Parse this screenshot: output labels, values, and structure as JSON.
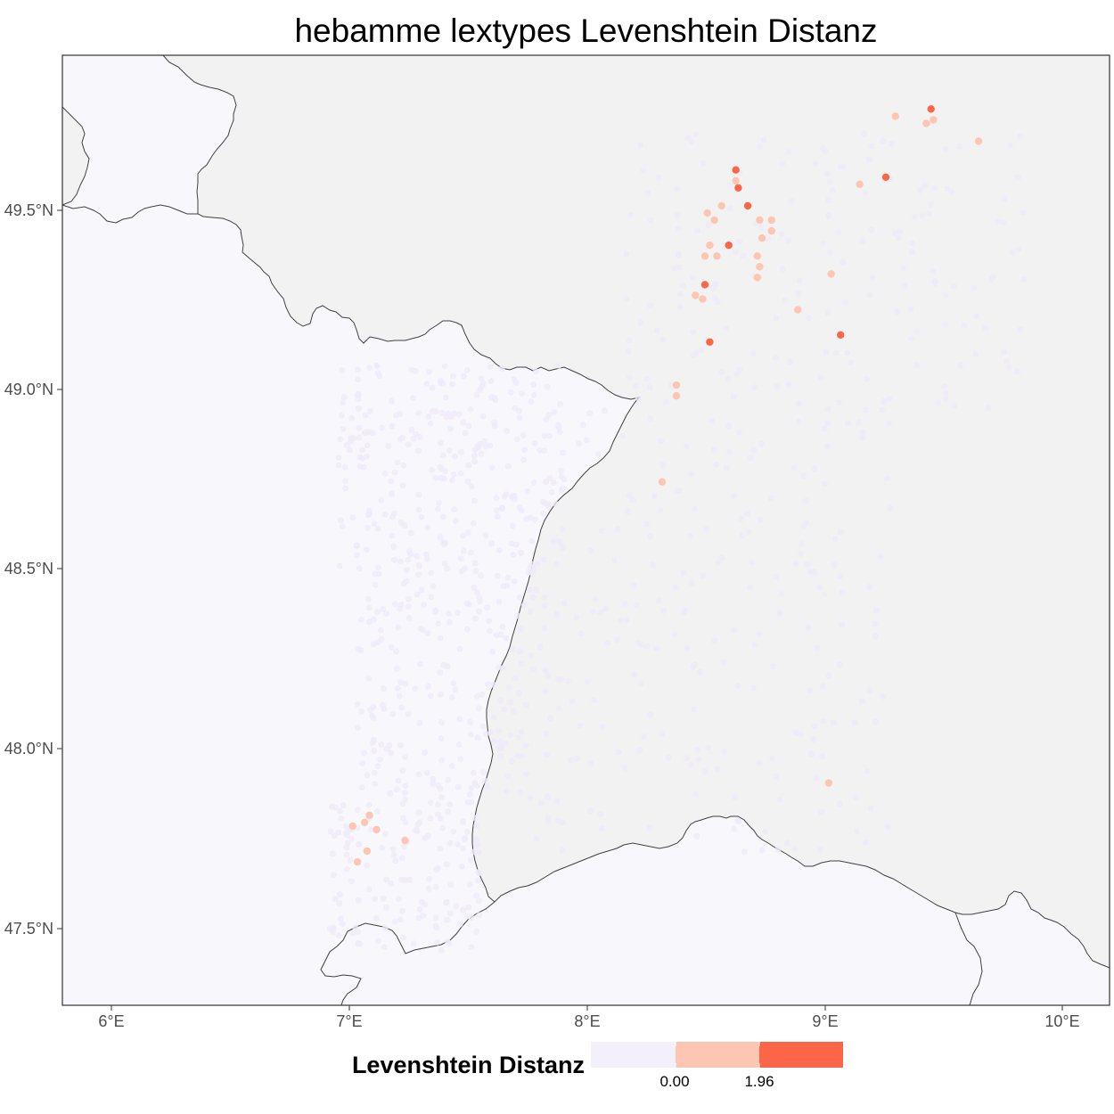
{
  "title": "hebamme lextypes Levenshtein Distanz",
  "axes": {
    "y_ticks": [
      "49.5°N",
      "49.0°N",
      "48.5°N",
      "48.0°N",
      "47.5°N"
    ],
    "x_ticks": [
      "6°E",
      "7°E",
      "8°E",
      "9°E",
      "10°E"
    ]
  },
  "legend": {
    "title": "Levenshtein Distanz",
    "labels": [
      "0.00",
      "1.96"
    ],
    "colors": [
      "#f4f0fb",
      "#fcc6b2",
      "#fc6648"
    ]
  },
  "colors": {
    "panel": "#f8f8fc",
    "neighbor_land": "#f2f2f2",
    "border": "#404040",
    "background_dots": "#efe9f8"
  },
  "chart_data": {
    "type": "scatter",
    "title": "hebamme lextypes Levenshtein Distanz",
    "xlim": [
      5.82,
      10.22
    ],
    "ylim": [
      47.28,
      49.93
    ],
    "x_ticks": [
      6,
      7,
      8,
      9,
      10
    ],
    "y_ticks": [
      47.5,
      48.0,
      48.5,
      49.0,
      49.5
    ],
    "legend_title": "Levenshtein Distanz",
    "legend_position": "bottom",
    "color_levels": {
      "low": "#f4f0fb",
      "mid": "#fcc6b2",
      "high": "#fc6648"
    },
    "points": [
      {
        "lon": 9.47,
        "lat": 49.78,
        "level": "high"
      },
      {
        "lon": 9.32,
        "lat": 49.76,
        "level": "mid"
      },
      {
        "lon": 9.45,
        "lat": 49.74,
        "level": "mid"
      },
      {
        "lon": 9.48,
        "lat": 49.75,
        "level": "mid"
      },
      {
        "lon": 9.67,
        "lat": 49.69,
        "level": "mid"
      },
      {
        "lon": 9.28,
        "lat": 49.59,
        "level": "high"
      },
      {
        "lon": 9.17,
        "lat": 49.57,
        "level": "mid"
      },
      {
        "lon": 8.65,
        "lat": 49.61,
        "level": "high"
      },
      {
        "lon": 8.65,
        "lat": 49.58,
        "level": "mid"
      },
      {
        "lon": 8.66,
        "lat": 49.56,
        "level": "high"
      },
      {
        "lon": 8.7,
        "lat": 49.51,
        "level": "high"
      },
      {
        "lon": 8.59,
        "lat": 49.51,
        "level": "mid"
      },
      {
        "lon": 8.53,
        "lat": 49.49,
        "level": "mid"
      },
      {
        "lon": 8.56,
        "lat": 49.47,
        "level": "mid"
      },
      {
        "lon": 8.75,
        "lat": 49.47,
        "level": "mid"
      },
      {
        "lon": 8.8,
        "lat": 49.47,
        "level": "mid"
      },
      {
        "lon": 8.8,
        "lat": 49.44,
        "level": "mid"
      },
      {
        "lon": 8.76,
        "lat": 49.42,
        "level": "mid"
      },
      {
        "lon": 8.62,
        "lat": 49.4,
        "level": "high"
      },
      {
        "lon": 8.54,
        "lat": 49.4,
        "level": "mid"
      },
      {
        "lon": 8.52,
        "lat": 49.37,
        "level": "mid"
      },
      {
        "lon": 8.57,
        "lat": 49.37,
        "level": "mid"
      },
      {
        "lon": 8.74,
        "lat": 49.37,
        "level": "mid"
      },
      {
        "lon": 8.75,
        "lat": 49.34,
        "level": "mid"
      },
      {
        "lon": 9.05,
        "lat": 49.32,
        "level": "mid"
      },
      {
        "lon": 8.74,
        "lat": 49.31,
        "level": "mid"
      },
      {
        "lon": 8.52,
        "lat": 49.29,
        "level": "high"
      },
      {
        "lon": 8.48,
        "lat": 49.26,
        "level": "mid"
      },
      {
        "lon": 8.51,
        "lat": 49.25,
        "level": "mid"
      },
      {
        "lon": 8.91,
        "lat": 49.22,
        "level": "mid"
      },
      {
        "lon": 9.09,
        "lat": 49.15,
        "level": "high"
      },
      {
        "lon": 8.54,
        "lat": 49.13,
        "level": "high"
      },
      {
        "lon": 8.4,
        "lat": 49.01,
        "level": "mid"
      },
      {
        "lon": 8.4,
        "lat": 48.98,
        "level": "mid"
      },
      {
        "lon": 8.34,
        "lat": 48.74,
        "level": "mid"
      },
      {
        "lon": 9.04,
        "lat": 47.9,
        "level": "mid"
      },
      {
        "lon": 7.11,
        "lat": 47.81,
        "level": "mid"
      },
      {
        "lon": 7.09,
        "lat": 47.79,
        "level": "mid"
      },
      {
        "lon": 7.04,
        "lat": 47.78,
        "level": "mid"
      },
      {
        "lon": 7.14,
        "lat": 47.77,
        "level": "mid"
      },
      {
        "lon": 7.26,
        "lat": 47.74,
        "level": "mid"
      },
      {
        "lon": 7.1,
        "lat": 47.71,
        "level": "mid"
      },
      {
        "lon": 7.06,
        "lat": 47.68,
        "level": "mid"
      }
    ]
  }
}
